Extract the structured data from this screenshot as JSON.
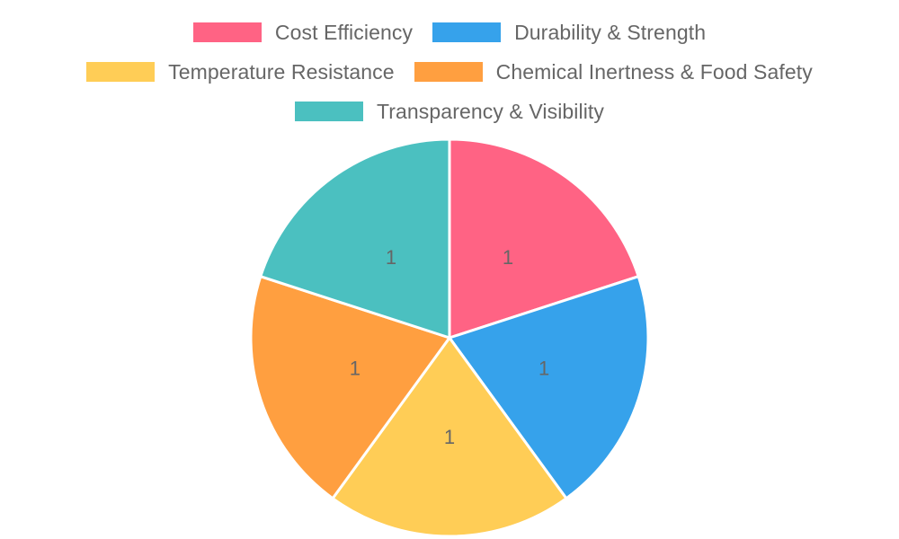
{
  "chart_data": {
    "type": "pie",
    "title": "",
    "legend_position": "top",
    "categories": [
      "Cost Efficiency",
      "Durability & Strength",
      "Temperature Resistance",
      "Chemical Inertness & Food Safety",
      "Transparency & Visibility"
    ],
    "values": [
      1,
      1,
      1,
      1,
      1
    ],
    "data_labels": [
      "1",
      "1",
      "1",
      "1",
      "1"
    ],
    "colors": [
      "#ff6384",
      "#36a2eb",
      "#ffcd56",
      "#ff9f40",
      "#4bc0c0"
    ]
  }
}
